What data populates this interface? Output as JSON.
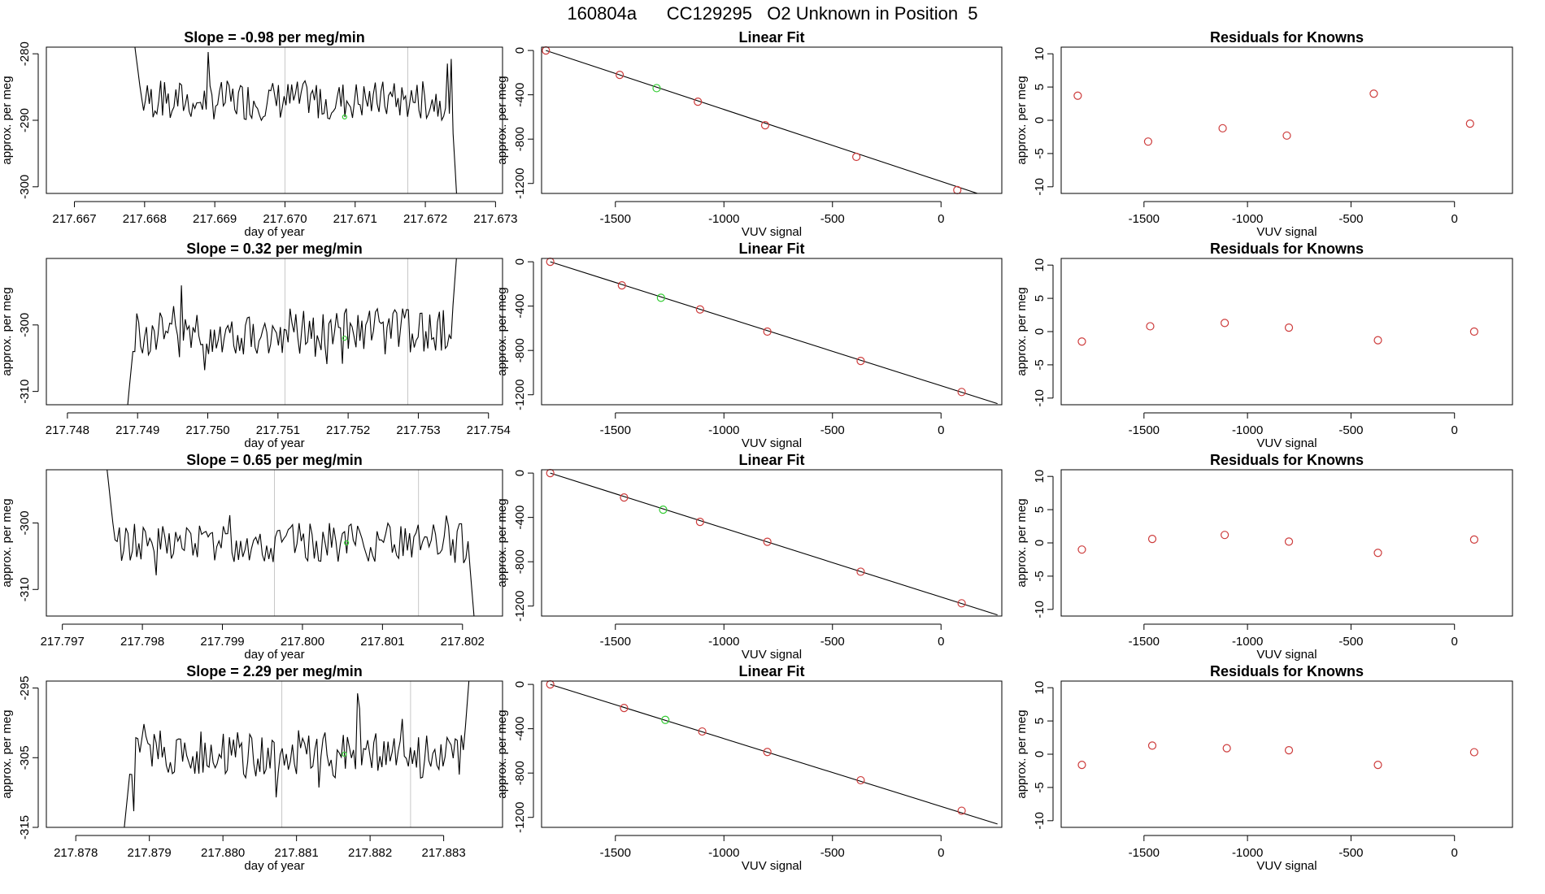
{
  "page_title": "160804a      CC129295   O2 Unknown in Position  5",
  "colors": {
    "line": "#000000",
    "known_point": "#cd3b3b",
    "unknown_point": "#33cc33",
    "vline": "#c8c8c8",
    "axis": "#000000"
  },
  "chart_data": [
    {
      "type": "line",
      "title": "Slope =  -0.98  per meg/min",
      "xlabel": "day of year",
      "ylabel": "approx. per meg",
      "xlim": [
        217.6666,
        217.6731
      ],
      "ylim": [
        -301,
        -279
      ],
      "xticks": [
        217.667,
        217.668,
        217.669,
        217.67,
        217.671,
        217.672,
        217.673
      ],
      "xtick_labels": [
        "217.667",
        "217.668",
        "217.669",
        "217.670",
        "217.671",
        "217.672",
        "217.673"
      ],
      "yticks": [
        -280,
        -290,
        -300
      ],
      "ytick_labels": [
        "-280",
        "-290",
        "-300"
      ],
      "vlines": [
        217.67,
        217.67175
      ],
      "series_start": 217.66785,
      "series_end": 217.67245,
      "series_mean": -287.0,
      "series_amp": 3.0,
      "start_value": -278,
      "end_value": -302,
      "marker": {
        "x": 217.67085,
        "y": -289.5
      }
    },
    {
      "type": "scatter",
      "title": "Linear Fit",
      "xlabel": "VUV signal",
      "ylabel": "approx. per meg",
      "xlim": [
        -1840,
        280
      ],
      "ylim": [
        -1290,
        30
      ],
      "xticks": [
        -1500,
        -1000,
        -500,
        0
      ],
      "xtick_labels": [
        "-1500",
        "-1000",
        "-500",
        "0"
      ],
      "yticks": [
        0,
        -400,
        -800,
        -1200
      ],
      "ytick_labels": [
        "0",
        "-400",
        "-800",
        "-1200"
      ],
      "x": [
        -1820,
        -1480,
        -1120,
        -810,
        -390,
        75
      ],
      "y": [
        0,
        -220,
        -462,
        -675,
        -960,
        -1260
      ],
      "unknown": {
        "x": -1310,
        "y": -340
      },
      "fit_line": [
        [
          -1820,
          0
        ],
        [
          260,
          -1350
        ]
      ]
    },
    {
      "type": "scatter",
      "title": "Residuals for Knowns",
      "xlabel": "VUV signal",
      "ylabel": "approx. per meg",
      "xlim": [
        -1900,
        280
      ],
      "ylim": [
        -11,
        11
      ],
      "xticks": [
        -1500,
        -1000,
        -500,
        0
      ],
      "xtick_labels": [
        "-1500",
        "-1000",
        "-500",
        "0"
      ],
      "yticks": [
        10,
        5,
        0,
        -5,
        -10
      ],
      "ytick_labels": [
        "10",
        "5",
        "0",
        "-5",
        "-10"
      ],
      "x": [
        -1820,
        -1480,
        -1120,
        -810,
        -390,
        75
      ],
      "y": [
        3.7,
        -3.2,
        -1.2,
        -2.3,
        4.0,
        -0.5
      ]
    },
    {
      "type": "line",
      "title": "Slope =  0.32  per meg/min",
      "xlabel": "day of year",
      "ylabel": "approx. per meg",
      "xlim": [
        217.7477,
        217.7542
      ],
      "ylim": [
        -312,
        -290
      ],
      "xticks": [
        217.748,
        217.749,
        217.75,
        217.751,
        217.752,
        217.753,
        217.754
      ],
      "xtick_labels": [
        "217.748",
        "217.749",
        "217.750",
        "217.751",
        "217.752",
        "217.753",
        "217.754"
      ],
      "yticks": [
        -300,
        -310
      ],
      "ytick_labels": [
        "-300",
        "-310"
      ],
      "vlines": [
        217.7511,
        217.75285
      ],
      "series_start": 217.74885,
      "series_end": 217.75355,
      "series_mean": -301.0,
      "series_amp": 3.5,
      "start_value": -313,
      "end_value": -289,
      "marker": {
        "x": 217.75195,
        "y": -302.0
      }
    },
    {
      "type": "scatter",
      "title": "Linear Fit",
      "xlabel": "VUV signal",
      "ylabel": "approx. per meg",
      "xlim": [
        -1840,
        280
      ],
      "ylim": [
        -1290,
        30
      ],
      "xticks": [
        -1500,
        -1000,
        -500,
        0
      ],
      "xtick_labels": [
        "-1500",
        "-1000",
        "-500",
        "0"
      ],
      "yticks": [
        0,
        -400,
        -800,
        -1200
      ],
      "ytick_labels": [
        "0",
        "-400",
        "-800",
        "-1200"
      ],
      "x": [
        -1800,
        -1470,
        -1110,
        -800,
        -370,
        95
      ],
      "y": [
        0,
        -213,
        -430,
        -630,
        -895,
        -1175
      ],
      "unknown": {
        "x": -1290,
        "y": -325
      },
      "fit_line": [
        [
          -1800,
          0
        ],
        [
          260,
          -1280
        ]
      ]
    },
    {
      "type": "scatter",
      "title": "Residuals for Knowns",
      "xlabel": "VUV signal",
      "ylabel": "approx. per meg",
      "xlim": [
        -1900,
        280
      ],
      "ylim": [
        -11,
        11
      ],
      "xticks": [
        -1500,
        -1000,
        -500,
        0
      ],
      "xtick_labels": [
        "-1500",
        "-1000",
        "-500",
        "0"
      ],
      "yticks": [
        10,
        5,
        0,
        -5,
        -10
      ],
      "ytick_labels": [
        "10",
        "5",
        "0",
        "-5",
        "-10"
      ],
      "x": [
        -1800,
        -1470,
        -1110,
        -800,
        -370,
        95
      ],
      "y": [
        -1.5,
        0.8,
        1.3,
        0.6,
        -1.3,
        0.0
      ]
    },
    {
      "type": "line",
      "title": "Slope =  0.65  per meg/min",
      "xlabel": "day of year",
      "ylabel": "approx. per meg",
      "xlim": [
        217.7968,
        217.8025
      ],
      "ylim": [
        -314,
        -292
      ],
      "xticks": [
        217.797,
        217.798,
        217.799,
        217.8,
        217.801,
        217.802
      ],
      "xtick_labels": [
        "217.797",
        "217.798",
        "217.799",
        "217.800",
        "217.801",
        "217.802"
      ],
      "yticks": [
        -300,
        -310
      ],
      "ytick_labels": [
        "-300",
        "-310"
      ],
      "vlines": [
        217.79965,
        217.80145
      ],
      "series_start": 217.79755,
      "series_end": 217.80215,
      "series_mean": -303.0,
      "series_amp": 3.0,
      "start_value": -291,
      "end_value": -315,
      "marker": {
        "x": 217.80055,
        "y": -303.0
      }
    },
    {
      "type": "scatter",
      "title": "Linear Fit",
      "xlabel": "VUV signal",
      "ylabel": "approx. per meg",
      "xlim": [
        -1840,
        280
      ],
      "ylim": [
        -1290,
        30
      ],
      "xticks": [
        -1500,
        -1000,
        -500,
        0
      ],
      "xtick_labels": [
        "-1500",
        "-1000",
        "-500",
        "0"
      ],
      "yticks": [
        0,
        -400,
        -800,
        -1200
      ],
      "ytick_labels": [
        "0",
        "-400",
        "-800",
        "-1200"
      ],
      "x": [
        -1800,
        -1460,
        -1110,
        -800,
        -370,
        95
      ],
      "y": [
        0,
        -220,
        -440,
        -620,
        -890,
        -1175
      ],
      "unknown": {
        "x": -1280,
        "y": -330
      },
      "fit_line": [
        [
          -1800,
          0
        ],
        [
          260,
          -1280
        ]
      ]
    },
    {
      "type": "scatter",
      "title": "Residuals for Knowns",
      "xlabel": "VUV signal",
      "ylabel": "approx. per meg",
      "xlim": [
        -1900,
        280
      ],
      "ylim": [
        -11,
        11
      ],
      "xticks": [
        -1500,
        -1000,
        -500,
        0
      ],
      "xtick_labels": [
        "-1500",
        "-1000",
        "-500",
        "0"
      ],
      "yticks": [
        10,
        5,
        0,
        -5,
        -10
      ],
      "ytick_labels": [
        "10",
        "5",
        "0",
        "-5",
        "-10"
      ],
      "x": [
        -1800,
        -1460,
        -1110,
        -800,
        -370,
        95
      ],
      "y": [
        -1.0,
        0.6,
        1.2,
        0.2,
        -1.5,
        0.5
      ]
    },
    {
      "type": "line",
      "title": "Slope =  2.29  per meg/min",
      "xlabel": "day of year",
      "ylabel": "approx. per meg",
      "xlim": [
        217.8776,
        217.8838
      ],
      "ylim": [
        -315,
        -294
      ],
      "xticks": [
        217.878,
        217.879,
        217.88,
        217.881,
        217.882,
        217.883
      ],
      "xtick_labels": [
        "217.878",
        "217.879",
        "217.880",
        "217.881",
        "217.882",
        "217.883"
      ],
      "yticks": [
        -295,
        -305,
        -315
      ],
      "ytick_labels": [
        "-295",
        "-305",
        "-315"
      ],
      "vlines": [
        217.8808,
        217.88255
      ],
      "series_start": 217.87865,
      "series_end": 217.88335,
      "series_mean": -304.5,
      "series_amp": 3.5,
      "start_value": -316,
      "end_value": -293,
      "marker": {
        "x": 217.88165,
        "y": -304.5
      }
    },
    {
      "type": "scatter",
      "title": "Linear Fit",
      "xlabel": "VUV signal",
      "ylabel": "approx. per meg",
      "xlim": [
        -1840,
        280
      ],
      "ylim": [
        -1290,
        30
      ],
      "xticks": [
        -1500,
        -1000,
        -500,
        0
      ],
      "xtick_labels": [
        "-1500",
        "-1000",
        "-500",
        "0"
      ],
      "yticks": [
        0,
        -400,
        -800,
        -1200
      ],
      "ytick_labels": [
        "0",
        "-400",
        "-800",
        "-1200"
      ],
      "x": [
        -1800,
        -1460,
        -1100,
        -800,
        -370,
        95
      ],
      "y": [
        0,
        -213,
        -425,
        -610,
        -865,
        -1140
      ],
      "unknown": {
        "x": -1270,
        "y": -320
      },
      "fit_line": [
        [
          -1800,
          0
        ],
        [
          260,
          -1260
        ]
      ]
    },
    {
      "type": "scatter",
      "title": "Residuals for Knowns",
      "xlabel": "VUV signal",
      "ylabel": "approx. per meg",
      "xlim": [
        -1900,
        280
      ],
      "ylim": [
        -11,
        11
      ],
      "xticks": [
        -1500,
        -1000,
        -500,
        0
      ],
      "xtick_labels": [
        "-1500",
        "-1000",
        "-500",
        "0"
      ],
      "yticks": [
        10,
        5,
        0,
        -5,
        -10
      ],
      "ytick_labels": [
        "10",
        "5",
        "0",
        "-5",
        "-10"
      ],
      "x": [
        -1800,
        -1460,
        -1100,
        -800,
        -370,
        95
      ],
      "y": [
        -1.6,
        1.3,
        0.9,
        0.6,
        -1.6,
        0.3
      ]
    }
  ]
}
